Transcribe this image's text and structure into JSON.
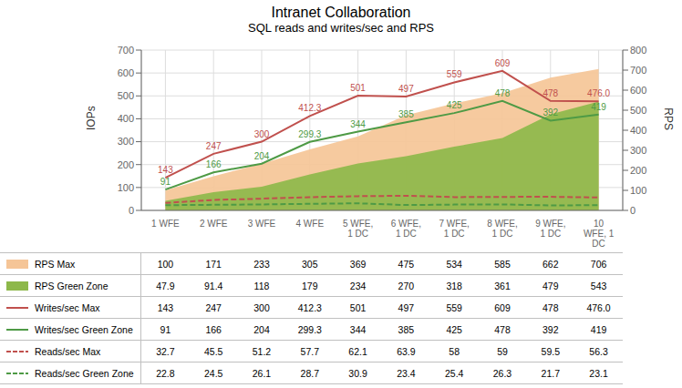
{
  "chart_data": {
    "type": "line",
    "title": "Intranet Collaboration",
    "subtitle": "SQL reads and writes/sec and RPS",
    "categories": [
      "1 WFE",
      "2 WFE",
      "3 WFE",
      "4 WFE",
      "5 WFE,\n1 DC",
      "6 WFE,\n1 DC",
      "7 WFE,\n1 DC",
      "8 WFE,\n1 DC",
      "9 WFE,\n1 DC",
      "10\nWFE, 1\nDC"
    ],
    "ylabel": "IOPs",
    "y2label": "RPS",
    "ylim": [
      0,
      700
    ],
    "yticks": [
      0,
      100,
      200,
      300,
      400,
      500,
      600,
      700
    ],
    "y2lim": [
      0,
      800
    ],
    "y2ticks": [
      0,
      100,
      200,
      300,
      400,
      500,
      600,
      700,
      800
    ],
    "grid": true,
    "legend": "bottom",
    "series": [
      {
        "name": "RPS Max",
        "type": "area",
        "axis": "y2",
        "color": "#F5C597",
        "values": [
          100,
          171,
          233,
          305,
          369,
          475,
          534,
          585,
          662,
          706
        ]
      },
      {
        "name": "RPS Green Zone",
        "type": "area",
        "axis": "y2",
        "color": "#8DB84A",
        "values": [
          47.9,
          91.4,
          118,
          179,
          234,
          270,
          318,
          361,
          479,
          543
        ]
      },
      {
        "name": "Writes/sec Max",
        "type": "line",
        "color": "#C0504D",
        "line_style": "solid",
        "data_labels": true,
        "values": [
          143,
          247,
          300,
          412.3,
          501,
          497,
          559,
          609,
          478,
          476.0
        ],
        "value_labels": [
          "143",
          "247",
          "300",
          "412.3",
          "501",
          "497",
          "559",
          "609",
          "478",
          "476.0"
        ]
      },
      {
        "name": "Writes/sec Green Zone",
        "type": "line",
        "color": "#4E9A45",
        "line_style": "solid",
        "data_labels": true,
        "values": [
          91,
          166,
          204,
          299.3,
          344,
          385,
          425,
          478,
          392,
          419
        ]
      },
      {
        "name": "Reads/sec Max",
        "type": "line",
        "color": "#C0504D",
        "line_style": "dashed",
        "values": [
          32.7,
          45.5,
          51.2,
          57.7,
          62.1,
          63.9,
          58,
          59,
          59.5,
          56.3
        ]
      },
      {
        "name": "Reads/sec Green Zone",
        "type": "line",
        "color": "#4E9A45",
        "line_style": "dashed",
        "values": [
          22.8,
          24.5,
          26.1,
          28.7,
          30.9,
          23.4,
          25.4,
          26.3,
          21.7,
          23.1
        ]
      }
    ]
  }
}
